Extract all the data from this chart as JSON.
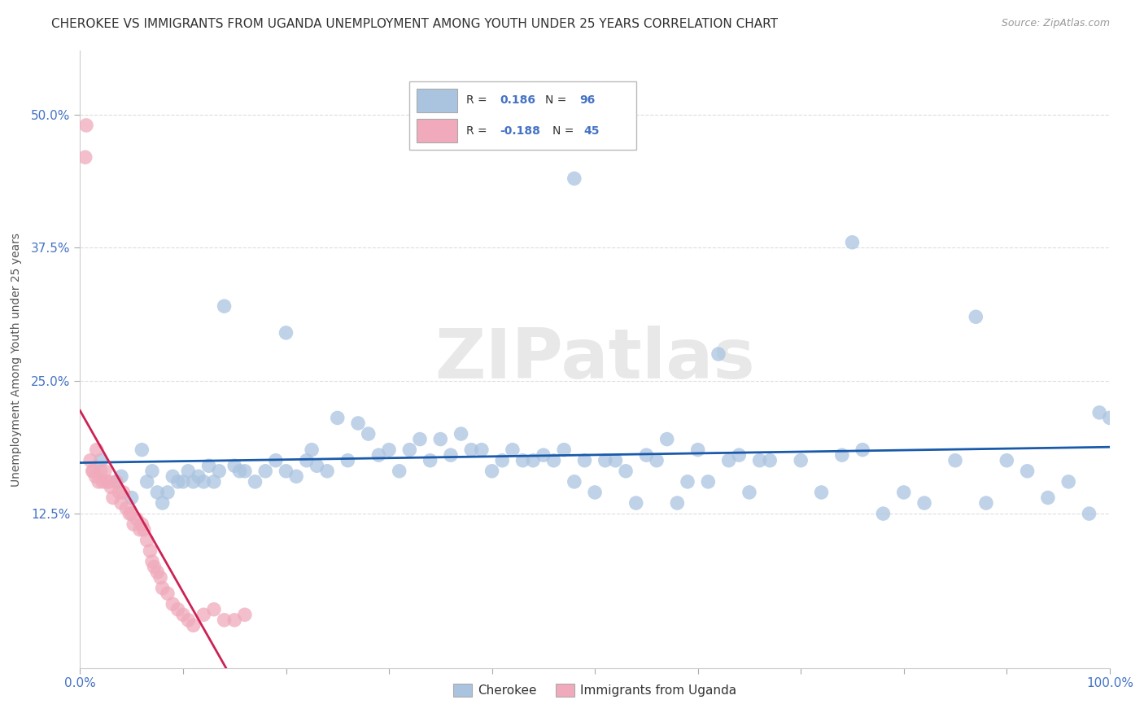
{
  "title": "CHEROKEE VS IMMIGRANTS FROM UGANDA UNEMPLOYMENT AMONG YOUTH UNDER 25 YEARS CORRELATION CHART",
  "source": "Source: ZipAtlas.com",
  "ylabel": "Unemployment Among Youth under 25 years",
  "ytick_vals": [
    0.125,
    0.25,
    0.375,
    0.5
  ],
  "ytick_labels": [
    "12.5%",
    "25.0%",
    "37.5%",
    "50.0%"
  ],
  "xlim": [
    0,
    100
  ],
  "ylim": [
    -0.02,
    0.56
  ],
  "blue_color": "#aac4e0",
  "pink_color": "#f0aabb",
  "line_blue": "#1a5aaa",
  "line_pink": "#cc2255",
  "grid_color": "#dddddd",
  "title_fontsize": 11,
  "source_fontsize": 9,
  "tick_fontsize": 11,
  "ylabel_fontsize": 10,
  "watermark_text": "ZIPatlas",
  "legend1_label": "R =  0.186   N = 96",
  "legend2_label": "R = -0.188   N = 45",
  "cherokee_x": [
    2.0,
    3.5,
    4.0,
    5.0,
    6.0,
    6.5,
    7.0,
    7.5,
    8.0,
    8.5,
    9.0,
    9.5,
    10.0,
    10.5,
    11.0,
    11.5,
    12.0,
    12.5,
    13.0,
    13.5,
    14.0,
    15.0,
    15.5,
    16.0,
    17.0,
    18.0,
    19.0,
    20.0,
    21.0,
    22.0,
    22.5,
    23.0,
    24.0,
    25.0,
    26.0,
    27.0,
    28.0,
    29.0,
    30.0,
    31.0,
    32.0,
    33.0,
    34.0,
    35.0,
    36.0,
    37.0,
    38.0,
    39.0,
    40.0,
    41.0,
    42.0,
    43.0,
    44.0,
    45.0,
    46.0,
    47.0,
    48.0,
    49.0,
    50.0,
    51.0,
    52.0,
    53.0,
    54.0,
    55.0,
    56.0,
    57.0,
    58.0,
    59.0,
    60.0,
    61.0,
    62.0,
    63.0,
    64.0,
    65.0,
    66.0,
    67.0,
    70.0,
    72.0,
    74.0,
    76.0,
    78.0,
    80.0,
    82.0,
    85.0,
    88.0,
    90.0,
    92.0,
    94.0,
    96.0,
    98.0,
    99.0,
    100.0,
    48.0,
    20.0,
    75.0,
    87.0
  ],
  "cherokee_y": [
    0.175,
    0.155,
    0.16,
    0.14,
    0.185,
    0.155,
    0.165,
    0.145,
    0.135,
    0.145,
    0.16,
    0.155,
    0.155,
    0.165,
    0.155,
    0.16,
    0.155,
    0.17,
    0.155,
    0.165,
    0.32,
    0.17,
    0.165,
    0.165,
    0.155,
    0.165,
    0.175,
    0.165,
    0.16,
    0.175,
    0.185,
    0.17,
    0.165,
    0.215,
    0.175,
    0.21,
    0.2,
    0.18,
    0.185,
    0.165,
    0.185,
    0.195,
    0.175,
    0.195,
    0.18,
    0.2,
    0.185,
    0.185,
    0.165,
    0.175,
    0.185,
    0.175,
    0.175,
    0.18,
    0.175,
    0.185,
    0.155,
    0.175,
    0.145,
    0.175,
    0.175,
    0.165,
    0.135,
    0.18,
    0.175,
    0.195,
    0.135,
    0.155,
    0.185,
    0.155,
    0.275,
    0.175,
    0.18,
    0.145,
    0.175,
    0.175,
    0.175,
    0.145,
    0.18,
    0.185,
    0.125,
    0.145,
    0.135,
    0.175,
    0.135,
    0.175,
    0.165,
    0.14,
    0.155,
    0.125,
    0.22,
    0.215,
    0.44,
    0.295,
    0.38,
    0.31
  ],
  "uganda_x": [
    0.5,
    0.6,
    1.0,
    1.2,
    1.3,
    1.5,
    1.6,
    1.8,
    2.0,
    2.2,
    2.4,
    2.6,
    2.8,
    3.0,
    3.2,
    3.5,
    3.8,
    4.0,
    4.2,
    4.5,
    4.8,
    5.0,
    5.2,
    5.5,
    5.8,
    6.0,
    6.2,
    6.5,
    6.8,
    7.0,
    7.2,
    7.5,
    7.8,
    8.0,
    8.5,
    9.0,
    9.5,
    10.0,
    10.5,
    11.0,
    12.0,
    13.0,
    14.0,
    15.0,
    16.0
  ],
  "uganda_y": [
    0.46,
    0.49,
    0.175,
    0.165,
    0.165,
    0.16,
    0.185,
    0.155,
    0.165,
    0.155,
    0.165,
    0.155,
    0.155,
    0.15,
    0.14,
    0.155,
    0.145,
    0.135,
    0.145,
    0.13,
    0.125,
    0.125,
    0.115,
    0.12,
    0.11,
    0.115,
    0.11,
    0.1,
    0.09,
    0.08,
    0.075,
    0.07,
    0.065,
    0.055,
    0.05,
    0.04,
    0.035,
    0.03,
    0.025,
    0.02,
    0.03,
    0.035,
    0.025,
    0.025,
    0.03
  ]
}
